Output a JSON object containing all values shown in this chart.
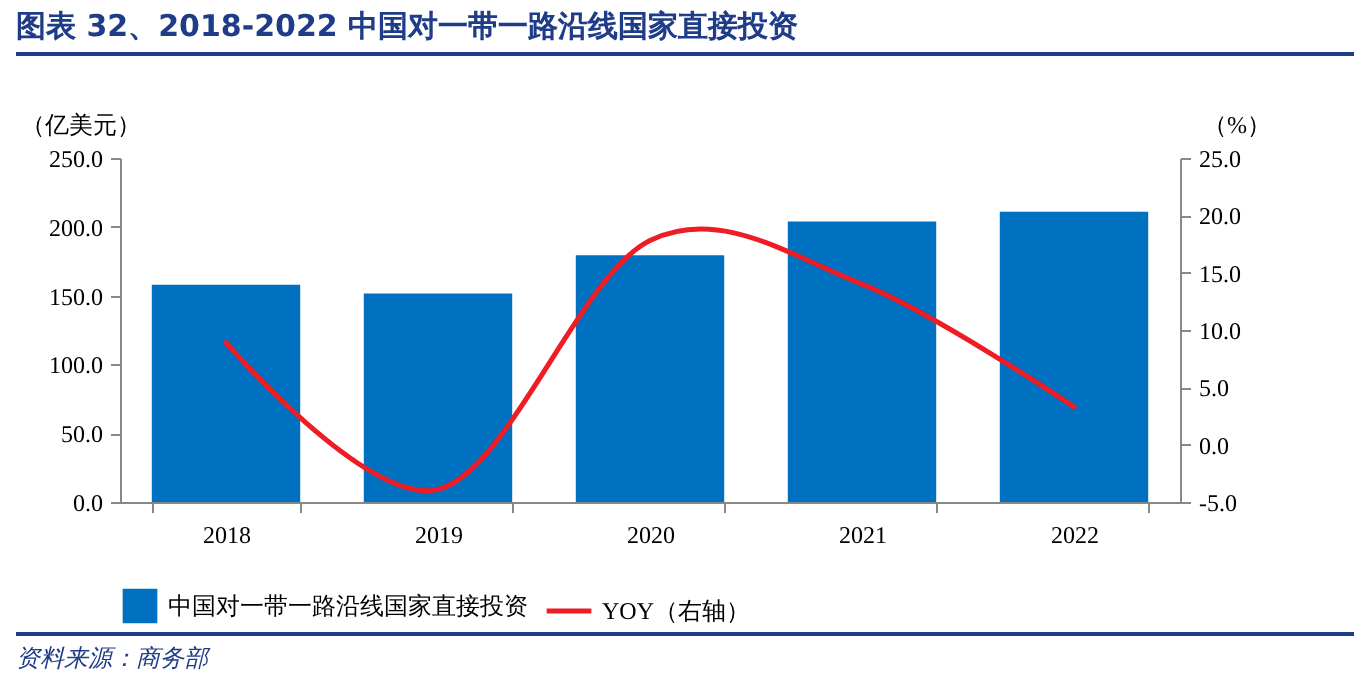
{
  "chart_data": {
    "type": "bar",
    "title": "图表 32、2018-2022 中国对一带一路沿线国家直接投资",
    "categories": [
      "2018",
      "2019",
      "2020",
      "2021",
      "2022"
    ],
    "series": [
      {
        "name": "中国对一带一路沿线国家直接投资",
        "color": "#0070c0",
        "values": [
          157.8,
          151.5,
          179.3,
          203.9,
          210.9
        ]
      },
      {
        "name": "YOY（右轴）",
        "type": "line",
        "axis": "y2",
        "color": "#ee1c25",
        "values": [
          8.9,
          -3.9,
          17.8,
          14.0,
          3.3
        ]
      }
    ],
    "ylabel": "（亿美元）",
    "y2label": "（%）",
    "ylim": [
      0,
      250
    ],
    "yticks": [
      {
        "value": 0,
        "label": "0.0"
      },
      {
        "value": 50,
        "label": "50.0"
      },
      {
        "value": 100,
        "label": "100.0"
      },
      {
        "value": 150,
        "label": "150.0"
      },
      {
        "value": 200,
        "label": "200.0"
      },
      {
        "value": 250,
        "label": "250.0"
      }
    ],
    "y2lim": [
      -5,
      25
    ],
    "y2ticks": [
      {
        "value": -5,
        "label": "-5.0"
      },
      {
        "value": 0,
        "label": "0.0"
      },
      {
        "value": 5,
        "label": "5.0"
      },
      {
        "value": 10,
        "label": "10.0"
      },
      {
        "value": 15,
        "label": "15.0"
      },
      {
        "value": 20,
        "label": "20.0"
      },
      {
        "value": 25,
        "label": "25.0"
      }
    ],
    "grid": false,
    "legend": "bottom",
    "annotations": [
      "资料来源：商务部"
    ]
  }
}
